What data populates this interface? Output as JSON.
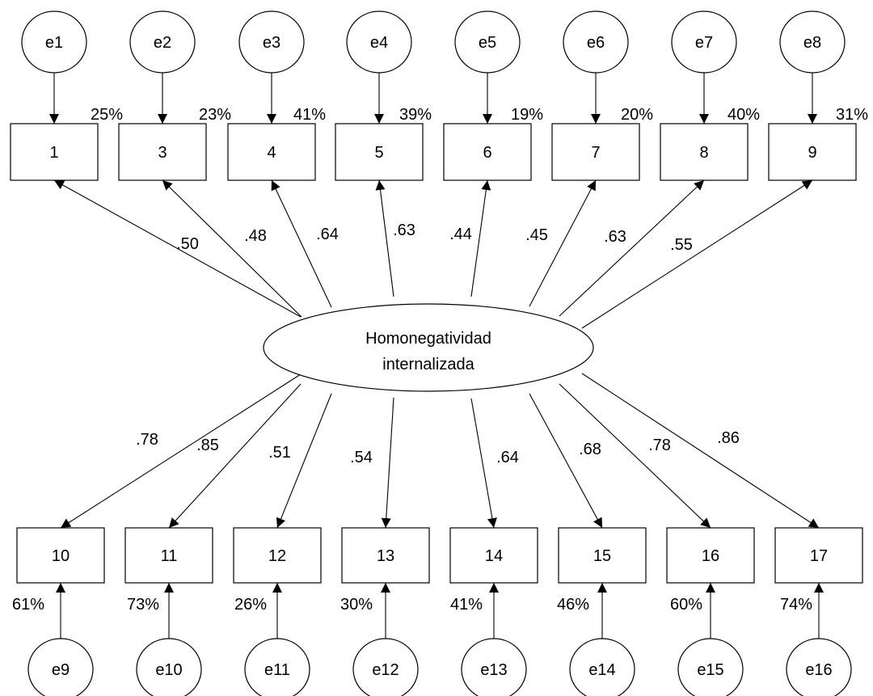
{
  "latent": {
    "lines": [
      "Homonegatividad",
      "internalizada"
    ]
  },
  "top_items": [
    {
      "label": "1",
      "error": "e1",
      "r2": "25%",
      "loading": ".50"
    },
    {
      "label": "3",
      "error": "e2",
      "r2": "23%",
      "loading": ".48"
    },
    {
      "label": "4",
      "error": "e3",
      "r2": "41%",
      "loading": ".64"
    },
    {
      "label": "5",
      "error": "e4",
      "r2": "39%",
      "loading": ".63"
    },
    {
      "label": "6",
      "error": "e5",
      "r2": "19%",
      "loading": ".44"
    },
    {
      "label": "7",
      "error": "e6",
      "r2": "20%",
      "loading": ".45"
    },
    {
      "label": "8",
      "error": "e7",
      "r2": "40%",
      "loading": ".63"
    },
    {
      "label": "9",
      "error": "e8",
      "r2": "31%",
      "loading": ".55"
    }
  ],
  "bottom_items": [
    {
      "label": "10",
      "error": "e9",
      "r2": "61%",
      "loading": ".78"
    },
    {
      "label": "11",
      "error": "e10",
      "r2": "73%",
      "loading": ".85"
    },
    {
      "label": "12",
      "error": "e11",
      "r2": "26%",
      "loading": ".51"
    },
    {
      "label": "13",
      "error": "e12",
      "r2": "30%",
      "loading": ".54"
    },
    {
      "label": "14",
      "error": "e13",
      "r2": "41%",
      "loading": ".64"
    },
    {
      "label": "15",
      "error": "e14",
      "r2": "46%",
      "loading": ".68"
    },
    {
      "label": "16",
      "error": "e15",
      "r2": "60%",
      "loading": ".78"
    },
    {
      "label": "17",
      "error": "e16",
      "r2": "74%",
      "loading": ".86"
    }
  ]
}
